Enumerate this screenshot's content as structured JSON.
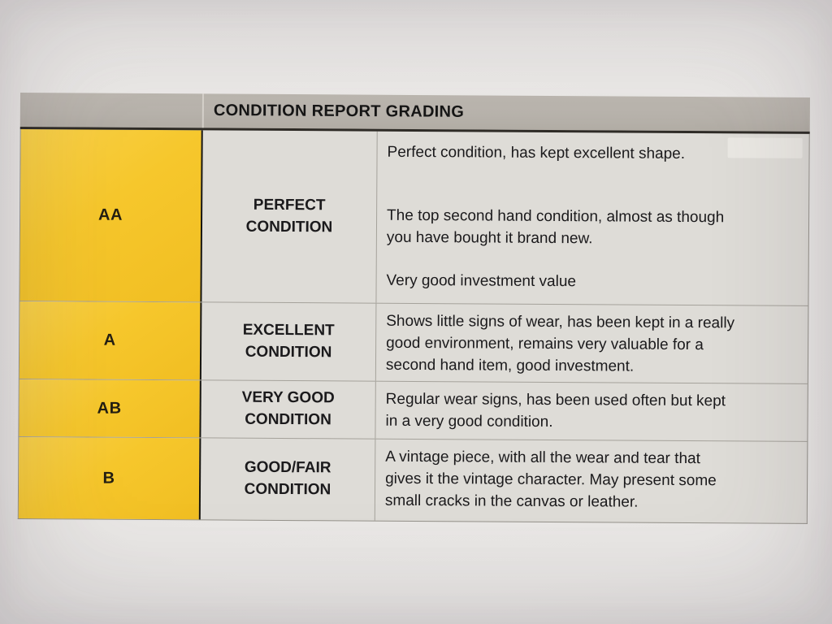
{
  "colors": {
    "grade_cell_yellow": "#f6c72c",
    "header_bar_gray": "#b7b2ab",
    "body_cell_gray": "#dedcd7",
    "text": "#1b1a1c"
  },
  "table": {
    "header": "CONDITION REPORT GRADING",
    "rows": [
      {
        "grade": "AA",
        "condition": "PERFECT\nCONDITION",
        "description": [
          "Perfect condition, has kept excellent shape.",
          "The top second hand condition, almost as though\nyou have bought it brand new.",
          "Very good investment value"
        ]
      },
      {
        "grade": "A",
        "condition": "EXCELLENT\nCONDITION",
        "description": [
          "Shows little signs of wear, has been kept in a really\ngood environment, remains very valuable for a\nsecond hand item, good investment."
        ]
      },
      {
        "grade": "AB",
        "condition": "VERY GOOD\nCONDITION",
        "description": [
          "Regular wear signs, has been used often but kept\nin a very good condition."
        ]
      },
      {
        "grade": "B",
        "condition": "GOOD/FAIR\nCONDITION",
        "description": [
          "A vintage piece, with all the wear and tear that\ngives it the vintage character. May present some\nsmall cracks in the canvas or leather."
        ]
      }
    ]
  }
}
